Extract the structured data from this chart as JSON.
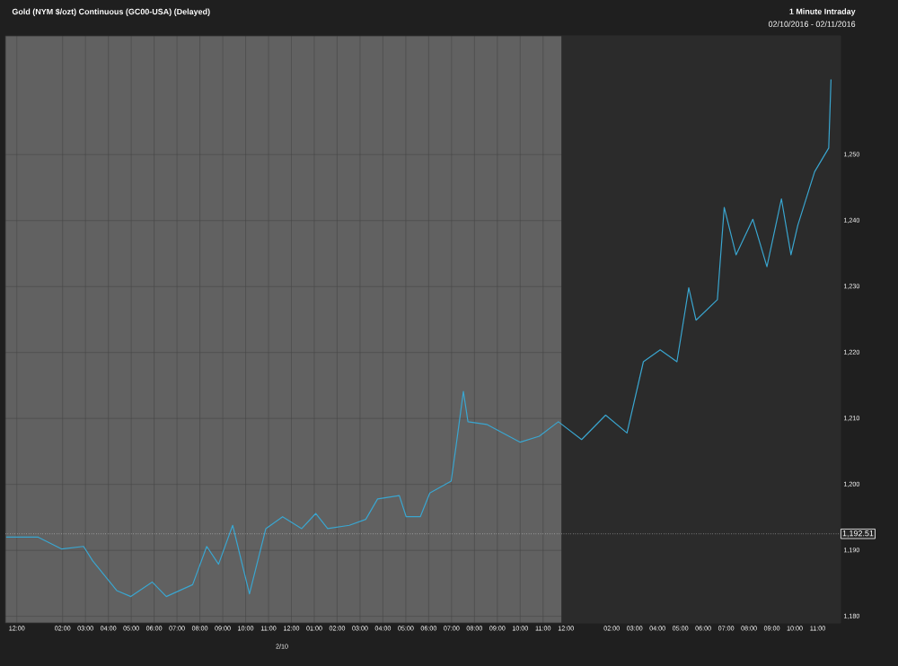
{
  "chart_data": {
    "type": "line",
    "title": "Gold (NYM $/ozt) Continuous (GC00-USA) (Delayed)",
    "subtitle": "1 Minute Intraday",
    "annotations": [
      "02/10/2016 - 02/11/2016",
      "2/10"
    ],
    "series": [
      {
        "color": "#3aa6d0",
        "x": [
          "2016-02-09T11:32",
          "2016-02-09T12:56",
          "2016-02-09T13:58",
          "2016-02-09T14:55",
          "2016-02-09T15:19",
          "2016-02-09T16:22",
          "2016-02-09T16:59",
          "2016-02-09T17:55",
          "2016-02-09T18:32",
          "2016-02-09T19:41",
          "2016-02-09T20:18",
          "2016-02-09T20:49",
          "2016-02-09T21:26",
          "2016-02-09T22:10",
          "2016-02-09T22:53",
          "2016-02-09T23:37",
          "2016-02-10T00:27",
          "2016-02-10T01:04",
          "2016-02-10T01:35",
          "2016-02-10T02:32",
          "2016-02-10T03:15",
          "2016-02-10T03:46",
          "2016-02-10T04:43",
          "2016-02-10T05:01",
          "2016-02-10T05:38",
          "2016-02-10T06:03",
          "2016-02-10T06:59",
          "2016-02-10T07:12",
          "2016-02-10T07:31",
          "2016-02-10T07:43",
          "2016-02-10T08:32",
          "2016-02-10T10:00",
          "2016-02-10T10:50",
          "2016-02-10T11:40",
          "2016-02-10T12:41",
          "2016-02-10T13:44",
          "2016-02-10T14:40",
          "2016-02-10T15:23",
          "2016-02-10T16:07",
          "2016-02-10T16:51",
          "2016-02-10T17:22",
          "2016-02-10T17:41",
          "2016-02-10T18:37",
          "2016-02-10T18:55",
          "2016-02-10T19:26",
          "2016-02-10T20:10",
          "2016-02-10T20:47",
          "2016-02-10T21:25",
          "2016-02-10T21:50",
          "2016-02-10T22:08",
          "2016-02-10T22:52",
          "2016-02-10T23:29",
          "2016-02-10T23:35"
        ],
        "values": [
          1192.0,
          1192.0,
          1190.2,
          1190.6,
          1188.4,
          1183.9,
          1183.0,
          1185.2,
          1183.0,
          1184.8,
          1190.6,
          1187.9,
          1193.8,
          1183.4,
          1193.3,
          1195.1,
          1193.3,
          1195.6,
          1193.3,
          1193.8,
          1194.7,
          1197.8,
          1198.3,
          1195.1,
          1195.1,
          1198.7,
          1200.5,
          1205.9,
          1214.1,
          1209.5,
          1209.1,
          1206.4,
          1207.3,
          1209.5,
          1206.8,
          1210.5,
          1207.8,
          1218.6,
          1220.4,
          1218.6,
          1229.8,
          1224.9,
          1228.0,
          1242.0,
          1234.8,
          1240.2,
          1233.0,
          1243.3,
          1234.8,
          1239.3,
          1247.4,
          1251.0,
          1261.4
        ]
      }
    ],
    "xlim": [
      "2016-02-09T11:30",
      "2016-02-11T00:00"
    ],
    "ylim": [
      1179,
      1268
    ],
    "xticks": [
      {
        "value": "2016-02-09T12:00",
        "label": "12:00"
      },
      {
        "value": "2016-02-09T14:00",
        "label": "02:00"
      },
      {
        "value": "2016-02-09T15:00",
        "label": "03:00"
      },
      {
        "value": "2016-02-09T16:00",
        "label": "04:00"
      },
      {
        "value": "2016-02-09T17:00",
        "label": "05:00"
      },
      {
        "value": "2016-02-09T18:00",
        "label": "06:00"
      },
      {
        "value": "2016-02-09T19:00",
        "label": "07:00"
      },
      {
        "value": "2016-02-09T20:00",
        "label": "08:00"
      },
      {
        "value": "2016-02-09T21:00",
        "label": "09:00"
      },
      {
        "value": "2016-02-09T22:00",
        "label": "10:00"
      },
      {
        "value": "2016-02-09T23:00",
        "label": "11:00"
      },
      {
        "value": "2016-02-10T00:00",
        "label": "12:00"
      },
      {
        "value": "2016-02-10T01:00",
        "label": "01:00"
      },
      {
        "value": "2016-02-10T02:00",
        "label": "02:00"
      },
      {
        "value": "2016-02-10T03:00",
        "label": "03:00"
      },
      {
        "value": "2016-02-10T04:00",
        "label": "04:00"
      },
      {
        "value": "2016-02-10T05:00",
        "label": "05:00"
      },
      {
        "value": "2016-02-10T06:00",
        "label": "06:00"
      },
      {
        "value": "2016-02-10T07:00",
        "label": "07:00"
      },
      {
        "value": "2016-02-10T08:00",
        "label": "08:00"
      },
      {
        "value": "2016-02-10T09:00",
        "label": "09:00"
      },
      {
        "value": "2016-02-10T10:00",
        "label": "10:00"
      },
      {
        "value": "2016-02-10T11:00",
        "label": "11:00"
      },
      {
        "value": "2016-02-10T12:00",
        "label": "12:00"
      },
      {
        "value": "2016-02-10T14:00",
        "label": "02:00"
      },
      {
        "value": "2016-02-10T15:00",
        "label": "03:00"
      },
      {
        "value": "2016-02-10T16:00",
        "label": "04:00"
      },
      {
        "value": "2016-02-10T17:00",
        "label": "05:00"
      },
      {
        "value": "2016-02-10T18:00",
        "label": "06:00"
      },
      {
        "value": "2016-02-10T19:00",
        "label": "07:00"
      },
      {
        "value": "2016-02-10T20:00",
        "label": "08:00"
      },
      {
        "value": "2016-02-10T21:00",
        "label": "09:00"
      },
      {
        "value": "2016-02-10T22:00",
        "label": "10:00"
      },
      {
        "value": "2016-02-10T23:00",
        "label": "11:00"
      }
    ],
    "yticks": [
      {
        "value": 1180,
        "label": "1,180"
      },
      {
        "value": 1190,
        "label": "1,190"
      },
      {
        "value": 1200,
        "label": "1,200"
      },
      {
        "value": 1210,
        "label": "1,210"
      },
      {
        "value": 1220,
        "label": "1,220"
      },
      {
        "value": 1230,
        "label": "1,230"
      },
      {
        "value": 1240,
        "label": "1,240"
      },
      {
        "value": 1250,
        "label": "1,250"
      }
    ],
    "ref_lines": [
      {
        "axis": "y",
        "value": 1192.51,
        "label": "1,192.51"
      }
    ],
    "bands": [
      {
        "axis": "x",
        "from": "2016-02-10T11:48",
        "to": "2016-02-11T00:00",
        "color": "#2b2b2b"
      }
    ],
    "grid": true,
    "marker": "none",
    "line_style": "solid"
  }
}
